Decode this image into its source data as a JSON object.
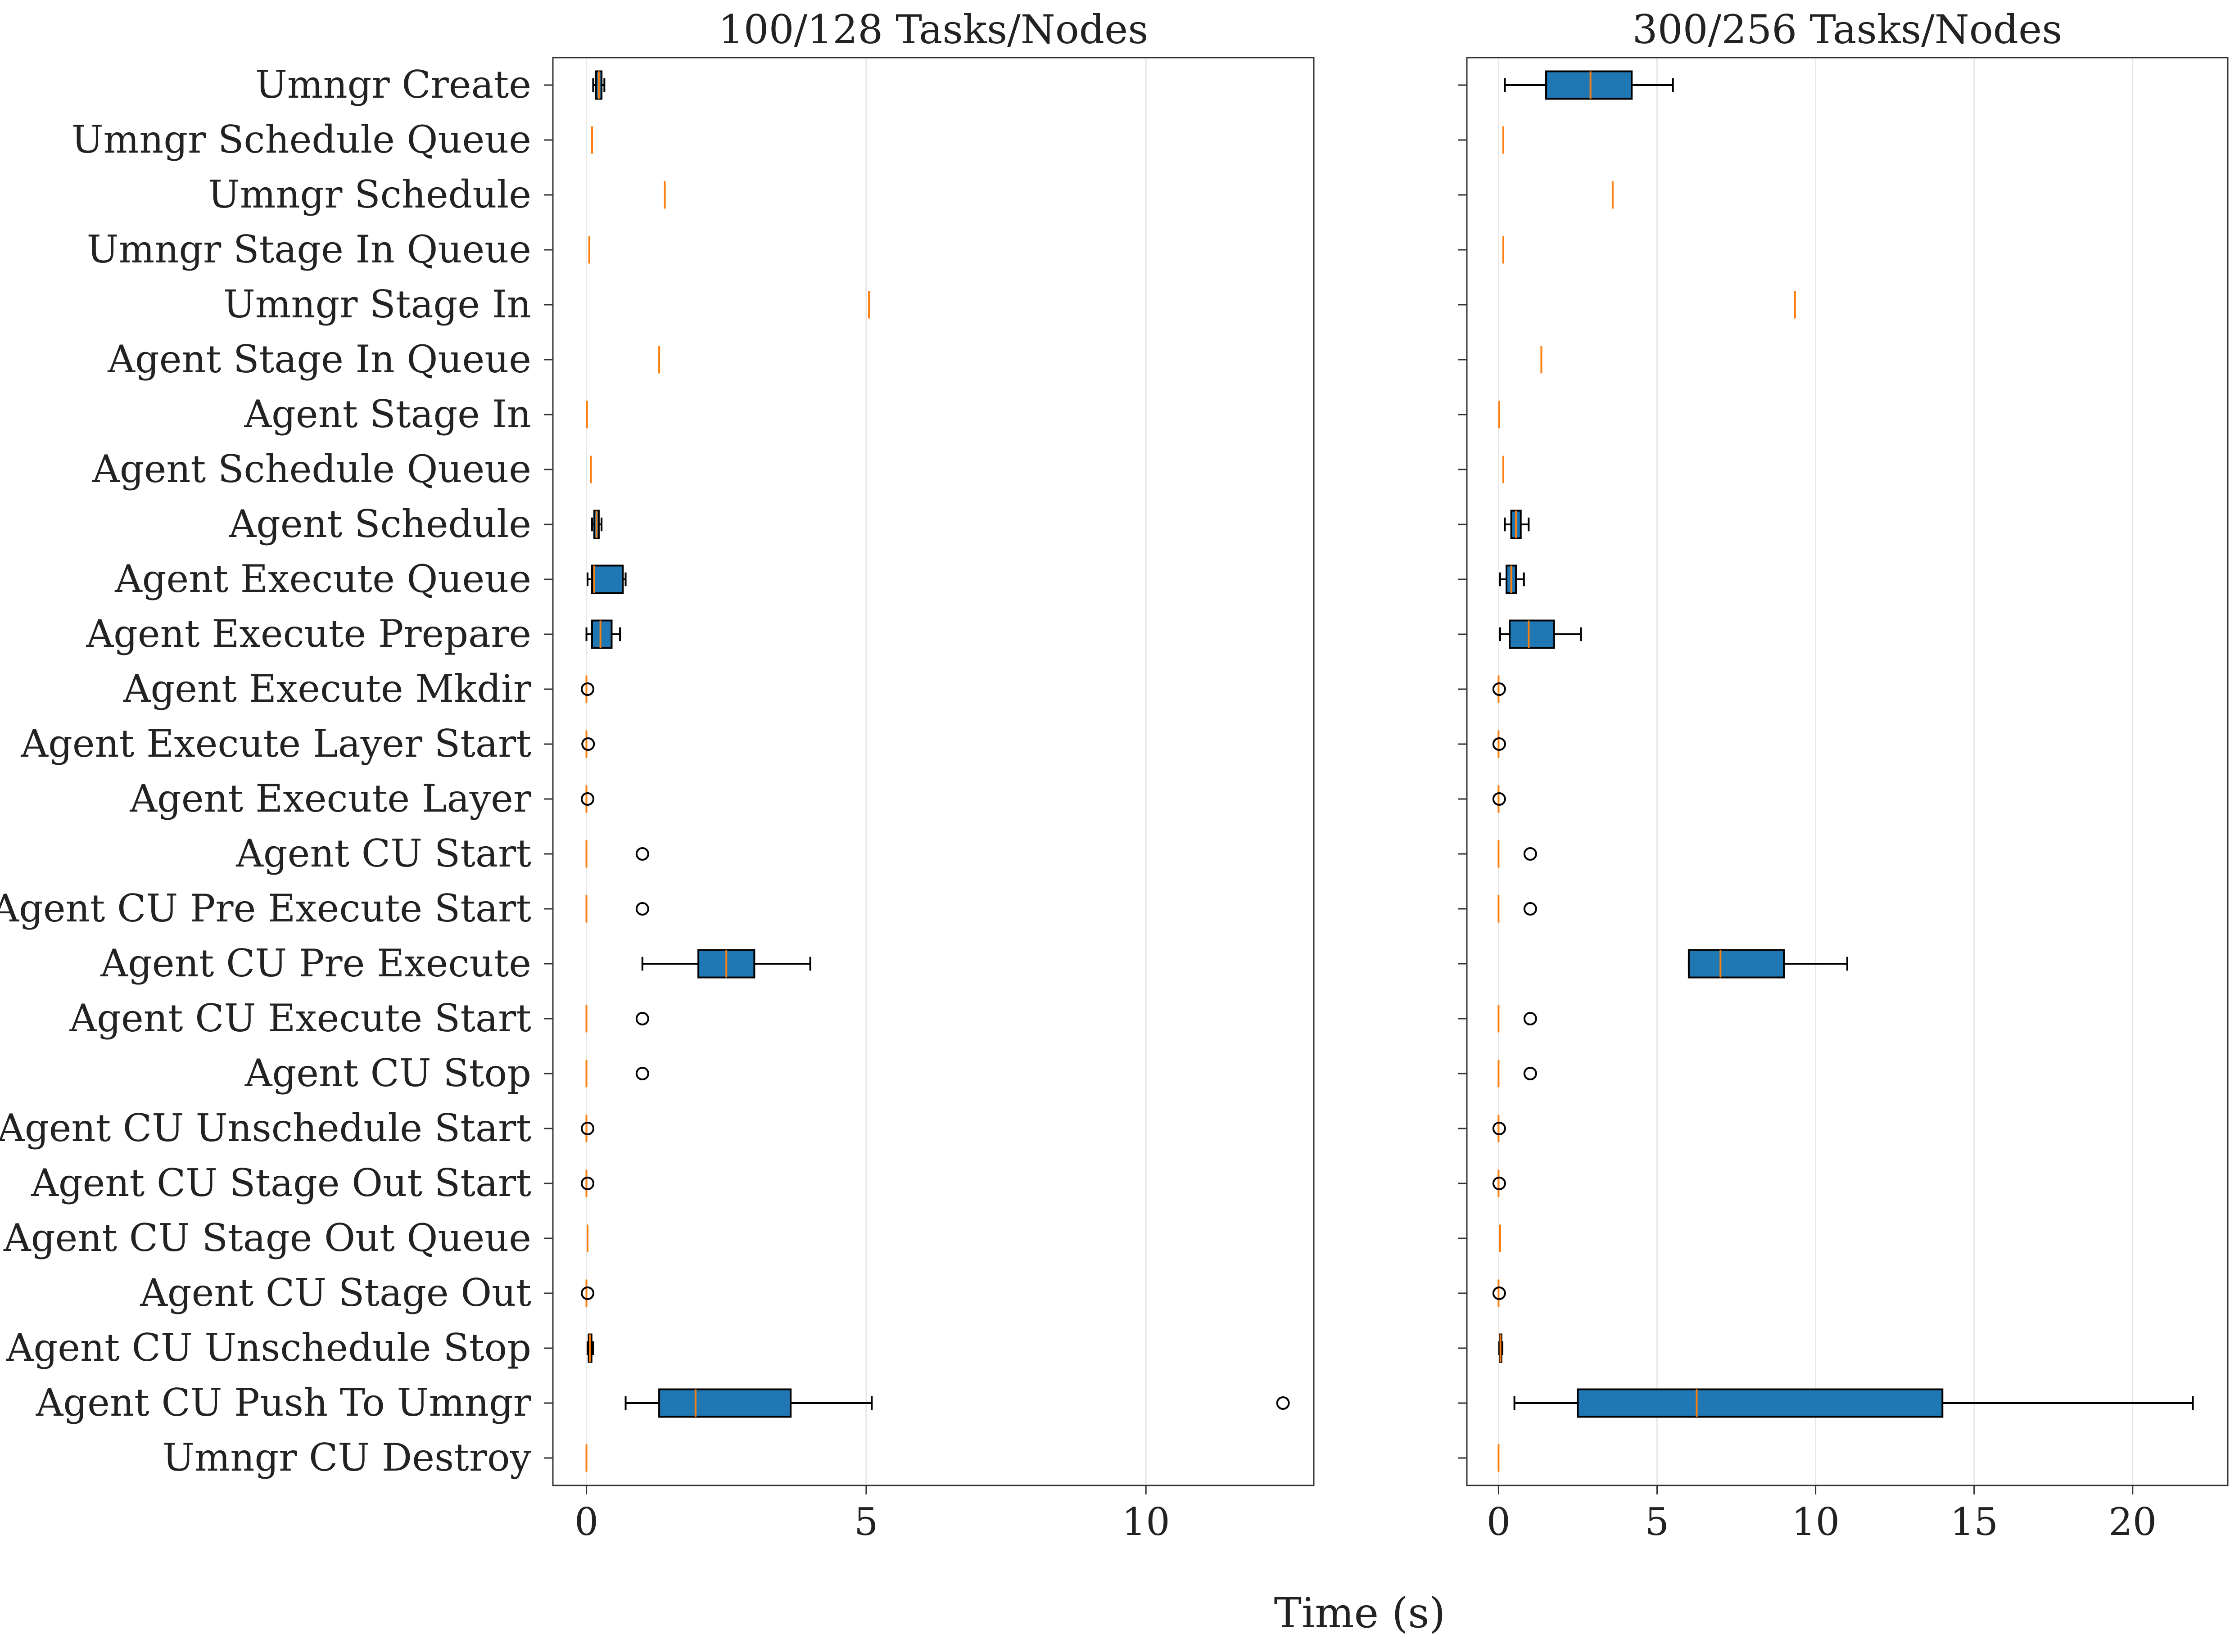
{
  "chart_data": {
    "type": "boxplot",
    "xlabel": "Time (s)",
    "colors": {
      "box": "#1f77b4",
      "median": "#ff7f0e",
      "outline": "#000000",
      "grid": "#e8e8e8"
    },
    "categories": [
      "Umngr Create",
      "Umngr Schedule Queue",
      "Umngr Schedule",
      "Umngr Stage In Queue",
      "Umngr Stage In",
      "Agent Stage In Queue",
      "Agent Stage In",
      "Agent Schedule Queue",
      "Agent Schedule",
      "Agent Execute Queue",
      "Agent Execute Prepare",
      "Agent Execute Mkdir",
      "Agent Execute Layer Start",
      "Agent Execute Layer",
      "Agent CU Start",
      "Agent CU Pre Execute Start",
      "Agent CU Pre Execute",
      "Agent CU Execute Start",
      "Agent CU Stop",
      "Agent CU Unschedule Start",
      "Agent CU Stage Out Start",
      "Agent CU Stage Out Queue",
      "Agent CU Stage Out",
      "Agent CU Unschedule Stop",
      "Agent CU Push To Umngr",
      "Umngr CU Destroy"
    ],
    "panels": [
      {
        "title": "100/128 Tasks/Nodes",
        "xlim": [
          -0.6,
          13.0
        ],
        "xticks": [
          0,
          5,
          10
        ],
        "boxes": [
          {
            "min": 0.12,
            "q1": 0.17,
            "median": 0.22,
            "q3": 0.27,
            "max": 0.32,
            "outliers": []
          },
          {
            "min": 0.1,
            "q1": 0.1,
            "median": 0.1,
            "q3": 0.1,
            "max": 0.1,
            "outliers": []
          },
          {
            "min": 1.4,
            "q1": 1.4,
            "median": 1.4,
            "q3": 1.4,
            "max": 1.4,
            "outliers": []
          },
          {
            "min": 0.05,
            "q1": 0.05,
            "median": 0.05,
            "q3": 0.05,
            "max": 0.05,
            "outliers": []
          },
          {
            "min": 5.05,
            "q1": 5.05,
            "median": 5.05,
            "q3": 5.05,
            "max": 5.05,
            "outliers": []
          },
          {
            "min": 1.3,
            "q1": 1.3,
            "median": 1.3,
            "q3": 1.3,
            "max": 1.3,
            "outliers": []
          },
          {
            "min": 0.01,
            "q1": 0.01,
            "median": 0.01,
            "q3": 0.01,
            "max": 0.01,
            "outliers": []
          },
          {
            "min": 0.08,
            "q1": 0.08,
            "median": 0.08,
            "q3": 0.08,
            "max": 0.08,
            "outliers": []
          },
          {
            "min": 0.1,
            "q1": 0.14,
            "median": 0.18,
            "q3": 0.22,
            "max": 0.27,
            "outliers": []
          },
          {
            "min": 0.02,
            "q1": 0.1,
            "median": 0.14,
            "q3": 0.65,
            "max": 0.7,
            "outliers": []
          },
          {
            "min": 0.0,
            "q1": 0.1,
            "median": 0.25,
            "q3": 0.45,
            "max": 0.6,
            "outliers": []
          },
          {
            "min": 0.0,
            "q1": 0.0,
            "median": 0.0,
            "q3": 0.0,
            "max": 0.0,
            "outliers": [
              0.02
            ]
          },
          {
            "min": 0.0,
            "q1": 0.0,
            "median": 0.0,
            "q3": 0.0,
            "max": 0.0,
            "outliers": [
              0.03
            ]
          },
          {
            "min": 0.0,
            "q1": 0.0,
            "median": 0.0,
            "q3": 0.0,
            "max": 0.0,
            "outliers": [
              0.02
            ]
          },
          {
            "min": 0.0,
            "q1": 0.0,
            "median": 0.0,
            "q3": 0.0,
            "max": 0.0,
            "outliers": [
              1.0
            ]
          },
          {
            "min": 0.0,
            "q1": 0.0,
            "median": 0.0,
            "q3": 0.0,
            "max": 0.0,
            "outliers": [
              1.0
            ]
          },
          {
            "min": 1.0,
            "q1": 2.0,
            "median": 2.5,
            "q3": 3.0,
            "max": 4.0,
            "outliers": []
          },
          {
            "min": 0.0,
            "q1": 0.0,
            "median": 0.0,
            "q3": 0.0,
            "max": 0.0,
            "outliers": [
              1.0
            ]
          },
          {
            "min": 0.0,
            "q1": 0.0,
            "median": 0.0,
            "q3": 0.0,
            "max": 0.0,
            "outliers": [
              1.0
            ]
          },
          {
            "min": 0.0,
            "q1": 0.0,
            "median": 0.0,
            "q3": 0.0,
            "max": 0.0,
            "outliers": [
              0.02
            ]
          },
          {
            "min": 0.0,
            "q1": 0.0,
            "median": 0.0,
            "q3": 0.0,
            "max": 0.0,
            "outliers": [
              0.02
            ]
          },
          {
            "min": 0.02,
            "q1": 0.02,
            "median": 0.02,
            "q3": 0.02,
            "max": 0.02,
            "outliers": []
          },
          {
            "min": 0.0,
            "q1": 0.0,
            "median": 0.0,
            "q3": 0.0,
            "max": 0.0,
            "outliers": [
              0.02
            ]
          },
          {
            "min": 0.02,
            "q1": 0.04,
            "median": 0.06,
            "q3": 0.09,
            "max": 0.12,
            "outliers": []
          },
          {
            "min": 0.7,
            "q1": 1.3,
            "median": 1.95,
            "q3": 3.65,
            "max": 5.1,
            "outliers": [
              12.45
            ]
          },
          {
            "min": 0.0,
            "q1": 0.0,
            "median": 0.0,
            "q3": 0.0,
            "max": 0.0,
            "outliers": []
          }
        ]
      },
      {
        "title": "300/256 Tasks/Nodes",
        "xlim": [
          -1.0,
          23.0
        ],
        "xticks": [
          0,
          5,
          10,
          15,
          20
        ],
        "boxes": [
          {
            "min": 0.2,
            "q1": 1.5,
            "median": 2.9,
            "q3": 4.2,
            "max": 5.5,
            "outliers": []
          },
          {
            "min": 0.15,
            "q1": 0.15,
            "median": 0.15,
            "q3": 0.15,
            "max": 0.15,
            "outliers": []
          },
          {
            "min": 3.6,
            "q1": 3.6,
            "median": 3.6,
            "q3": 3.6,
            "max": 3.6,
            "outliers": []
          },
          {
            "min": 0.15,
            "q1": 0.15,
            "median": 0.15,
            "q3": 0.15,
            "max": 0.15,
            "outliers": []
          },
          {
            "min": 9.35,
            "q1": 9.35,
            "median": 9.35,
            "q3": 9.35,
            "max": 9.35,
            "outliers": []
          },
          {
            "min": 1.35,
            "q1": 1.35,
            "median": 1.35,
            "q3": 1.35,
            "max": 1.35,
            "outliers": []
          },
          {
            "min": 0.02,
            "q1": 0.02,
            "median": 0.02,
            "q3": 0.02,
            "max": 0.02,
            "outliers": []
          },
          {
            "min": 0.15,
            "q1": 0.15,
            "median": 0.15,
            "q3": 0.15,
            "max": 0.15,
            "outliers": []
          },
          {
            "min": 0.2,
            "q1": 0.4,
            "median": 0.55,
            "q3": 0.7,
            "max": 0.95,
            "outliers": []
          },
          {
            "min": 0.05,
            "q1": 0.25,
            "median": 0.4,
            "q3": 0.55,
            "max": 0.8,
            "outliers": []
          },
          {
            "min": 0.05,
            "q1": 0.35,
            "median": 0.95,
            "q3": 1.75,
            "max": 2.6,
            "outliers": []
          },
          {
            "min": 0.0,
            "q1": 0.0,
            "median": 0.0,
            "q3": 0.0,
            "max": 0.0,
            "outliers": [
              0.02
            ]
          },
          {
            "min": 0.0,
            "q1": 0.0,
            "median": 0.0,
            "q3": 0.0,
            "max": 0.0,
            "outliers": [
              0.02
            ]
          },
          {
            "min": 0.0,
            "q1": 0.0,
            "median": 0.0,
            "q3": 0.0,
            "max": 0.0,
            "outliers": [
              0.02
            ]
          },
          {
            "min": 0.0,
            "q1": 0.0,
            "median": 0.0,
            "q3": 0.0,
            "max": 0.0,
            "outliers": [
              1.0
            ]
          },
          {
            "min": 0.0,
            "q1": 0.0,
            "median": 0.0,
            "q3": 0.0,
            "max": 0.0,
            "outliers": [
              1.0
            ]
          },
          {
            "min": 6.0,
            "q1": 6.0,
            "median": 7.0,
            "q3": 9.0,
            "max": 11.0,
            "outliers": []
          },
          {
            "min": 0.0,
            "q1": 0.0,
            "median": 0.0,
            "q3": 0.0,
            "max": 0.0,
            "outliers": [
              1.0
            ]
          },
          {
            "min": 0.0,
            "q1": 0.0,
            "median": 0.0,
            "q3": 0.0,
            "max": 0.0,
            "outliers": [
              1.0
            ]
          },
          {
            "min": 0.0,
            "q1": 0.0,
            "median": 0.0,
            "q3": 0.0,
            "max": 0.0,
            "outliers": [
              0.02
            ]
          },
          {
            "min": 0.0,
            "q1": 0.0,
            "median": 0.0,
            "q3": 0.0,
            "max": 0.0,
            "outliers": [
              0.02
            ]
          },
          {
            "min": 0.05,
            "q1": 0.05,
            "median": 0.05,
            "q3": 0.05,
            "max": 0.05,
            "outliers": []
          },
          {
            "min": 0.0,
            "q1": 0.0,
            "median": 0.0,
            "q3": 0.0,
            "max": 0.0,
            "outliers": [
              0.02
            ]
          },
          {
            "min": 0.02,
            "q1": 0.04,
            "median": 0.06,
            "q3": 0.09,
            "max": 0.12,
            "outliers": []
          },
          {
            "min": 0.5,
            "q1": 2.5,
            "median": 6.25,
            "q3": 14.0,
            "max": 21.9,
            "outliers": []
          },
          {
            "min": 0.0,
            "q1": 0.0,
            "median": 0.0,
            "q3": 0.0,
            "max": 0.0,
            "outliers": []
          }
        ]
      }
    ]
  }
}
